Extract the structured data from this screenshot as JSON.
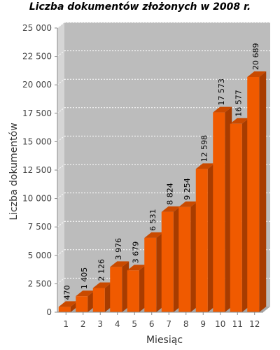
{
  "chart_data": {
    "type": "bar",
    "title": "Liczba dokumentów złożonych w 2008 r.",
    "xlabel": "Miesiąc",
    "ylabel": "Liczba dokumentów",
    "categories": [
      "1",
      "2",
      "3",
      "4",
      "5",
      "6",
      "7",
      "8",
      "9",
      "10",
      "11",
      "12"
    ],
    "values": [
      470,
      1405,
      2126,
      3976,
      3679,
      6531,
      8824,
      9254,
      12598,
      17573,
      16577,
      20689
    ],
    "value_labels": [
      "470",
      "1 405",
      "2 126",
      "3 976",
      "3 679",
      "6 531",
      "8 824",
      "9 254",
      "12 598",
      "17 573",
      "16 577",
      "20 689"
    ],
    "yticks": [
      0,
      2500,
      5000,
      7500,
      10000,
      12500,
      15000,
      17500,
      20000,
      22500,
      25000
    ],
    "ytick_labels": [
      "0",
      "2 500",
      "5 000",
      "7 500",
      "10 000",
      "12 500",
      "15 000",
      "17 500",
      "20 000",
      "22 500",
      "25 000"
    ],
    "ylim": [
      0,
      25000
    ],
    "grid": true,
    "colors": {
      "bar_front": "#f05a00",
      "bar_top": "#c94a00",
      "bar_side": "#a83c00",
      "plot_bg": "#bcbcbc",
      "plot_side": "#d6d6d6",
      "plot_floor": "#a8a8a8",
      "grid": "#ffffff"
    }
  }
}
